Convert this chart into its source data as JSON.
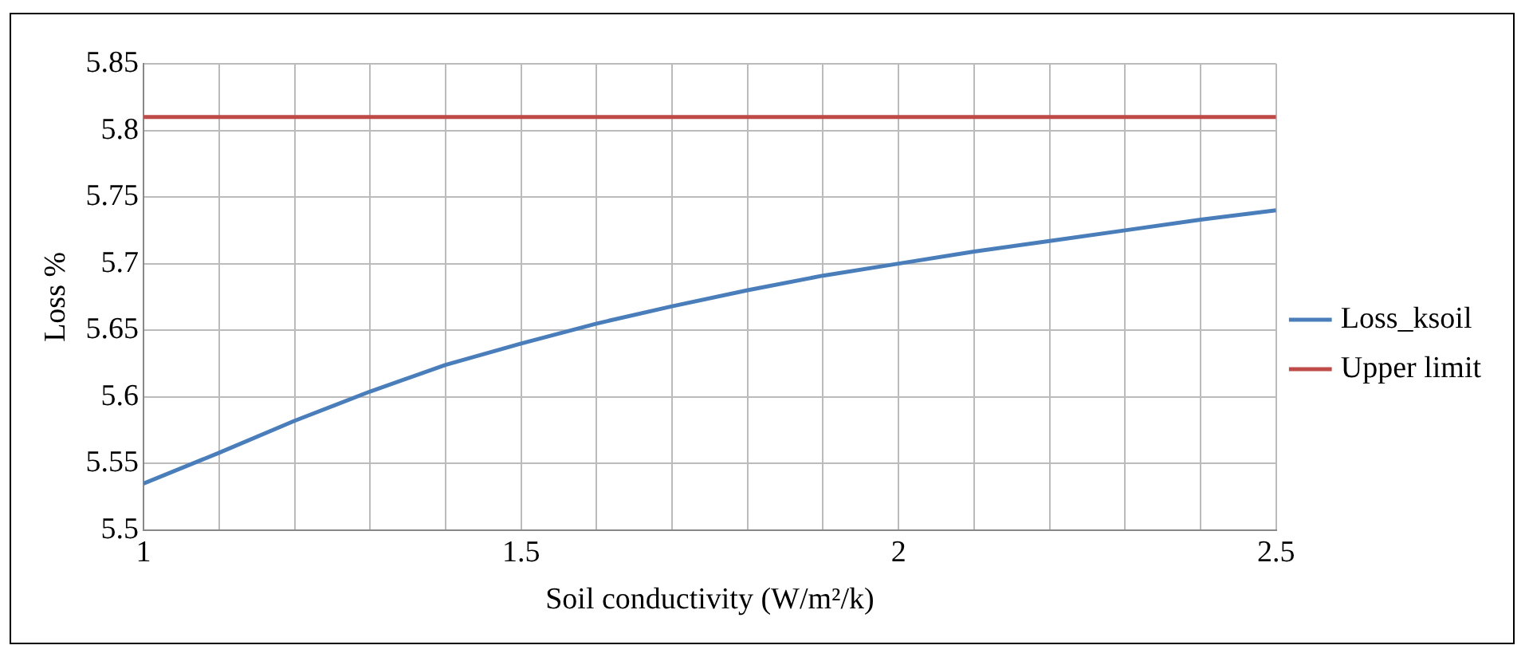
{
  "chart_data": {
    "type": "line",
    "xlabel": "Soil conductivity (W/m²/k)",
    "ylabel": "Loss %",
    "x": [
      1,
      1.1,
      1.2,
      1.3,
      1.4,
      1.5,
      1.6,
      1.7,
      1.8,
      1.9,
      2,
      2.1,
      2.2,
      2.3,
      2.4,
      2.5
    ],
    "series": [
      {
        "name": "Loss_ksoil",
        "color": "#4a7ebb",
        "values": [
          5.535,
          5.558,
          5.582,
          5.604,
          5.624,
          5.64,
          5.655,
          5.668,
          5.68,
          5.691,
          5.7,
          5.709,
          5.717,
          5.725,
          5.733,
          5.74
        ]
      },
      {
        "name": "Upper limit",
        "color": "#be4b48",
        "x": [
          1,
          2.5
        ],
        "values": [
          5.81,
          5.81
        ]
      }
    ],
    "xlim": [
      1,
      2.5
    ],
    "xticks": [
      1,
      {
        "value": 1.1,
        "label": null
      },
      {
        "value": 1.2,
        "label": null
      },
      {
        "value": 1.3,
        "label": null
      },
      {
        "value": 1.4,
        "label": null
      },
      1.5,
      {
        "value": 1.6,
        "label": null
      },
      {
        "value": 1.7,
        "label": null
      },
      {
        "value": 1.8,
        "label": null
      },
      {
        "value": 1.9,
        "label": null
      },
      2,
      {
        "value": 2.1,
        "label": null
      },
      {
        "value": 2.2,
        "label": null
      },
      {
        "value": 2.3,
        "label": null
      },
      {
        "value": 2.4,
        "label": null
      },
      2.5
    ],
    "ylim": [
      5.5,
      5.85
    ],
    "yticks": [
      5.5,
      5.55,
      5.6,
      5.65,
      5.7,
      5.75,
      5.8,
      5.85
    ],
    "grid": true,
    "legend": "right",
    "marker": "none",
    "line_style": "solid"
  }
}
